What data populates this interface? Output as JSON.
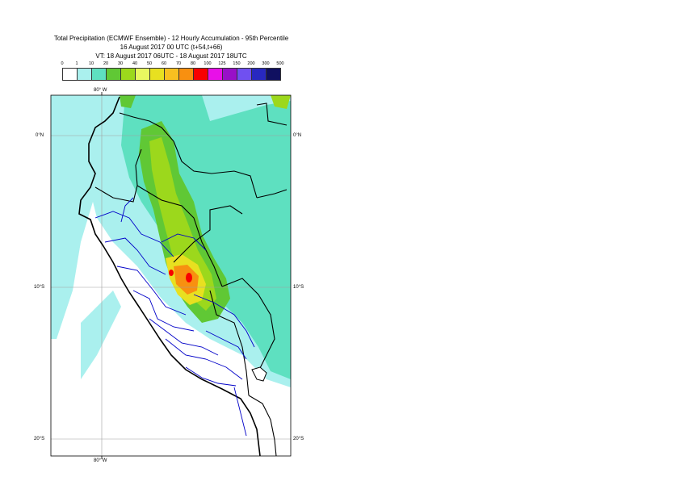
{
  "header": {
    "line1": "Total Precipitation (ECMWF Ensemble) - 12 Hourly Accumulation - 95th Percentile",
    "line2": "16 August 2017 00 UTC (t+54,t+66)",
    "line3": "VT: 18 August 2017 06UTC - 18 August 2017 18UTC"
  },
  "legend": {
    "ticks": [
      "0",
      "1",
      "10",
      "20",
      "30",
      "40",
      "50",
      "60",
      "70",
      "80",
      "100",
      "125",
      "150",
      "200",
      "300",
      "500"
    ],
    "colors": [
      "#ffffff",
      "#aaf0ee",
      "#5ee0c0",
      "#60c835",
      "#9cd81c",
      "#e8f860",
      "#e8e020",
      "#f8c020",
      "#f89010",
      "#f80000",
      "#e810e8",
      "#9810c8",
      "#7050f0",
      "#2828c0",
      "#101060"
    ]
  },
  "map": {
    "axis_labels": {
      "lon_top": "80° W",
      "lon_bottom": "80° W",
      "lat_0_left": "0°N",
      "lat_0_right": "0°N",
      "lat_10_left": "10°S",
      "lat_10_right": "10°S",
      "lat_20_left": "20°S",
      "lat_20_right": "20°S"
    },
    "colors": {
      "ocean": "#ffffff",
      "light": "#aaf0ee",
      "teal": "#5ee0c0",
      "green": "#60c835",
      "lime": "#9cd81c",
      "yellow": "#e8e020",
      "orange": "#f89010",
      "red": "#f80000",
      "coast": "#000000",
      "boundary": "#0000c8",
      "grid": "#a0a0a0"
    }
  }
}
